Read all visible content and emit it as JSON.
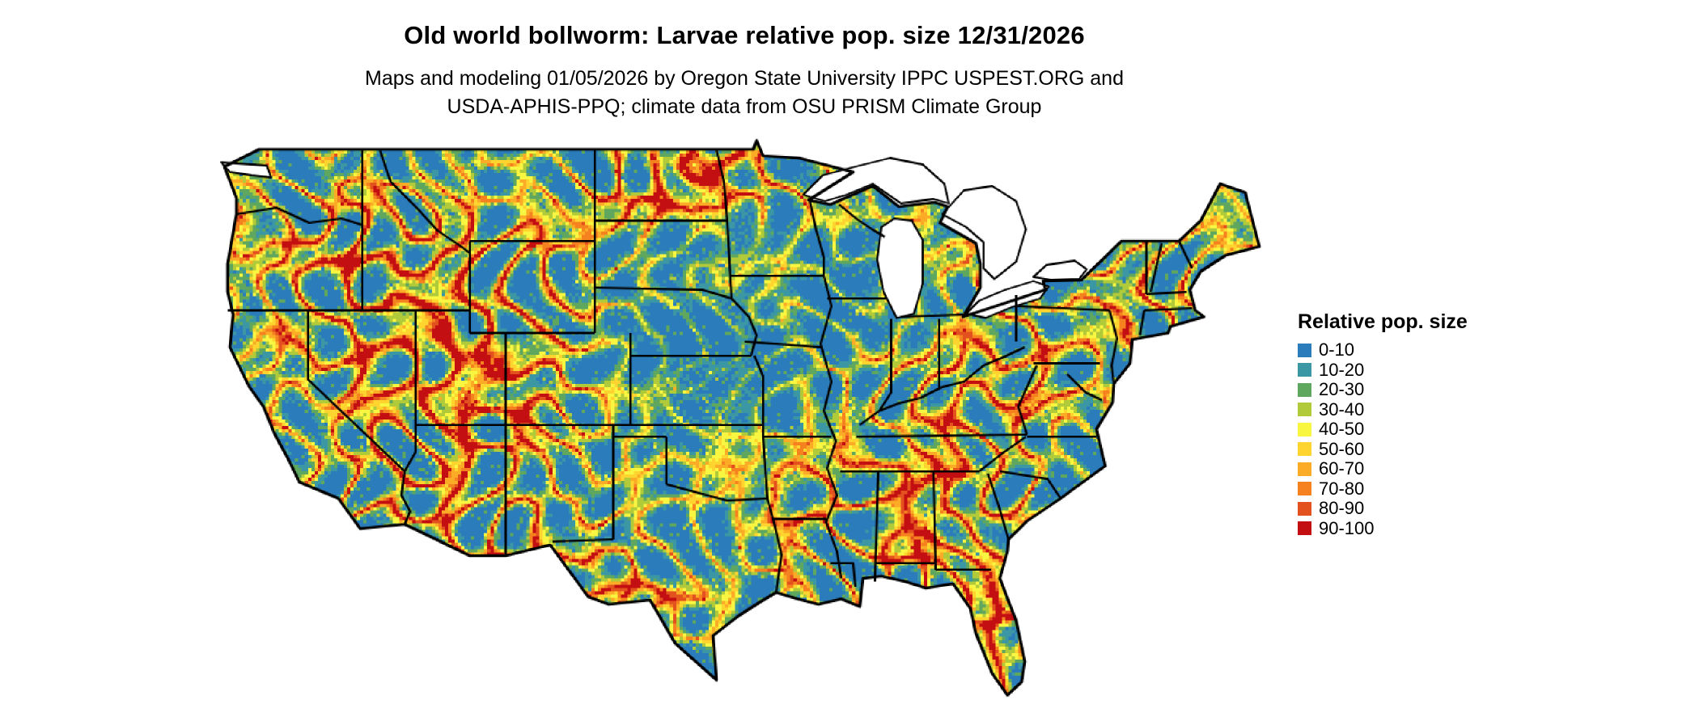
{
  "page": {
    "background": "#ffffff"
  },
  "header": {
    "title": "Old world bollworm: Larvae relative pop. size 12/31/2026",
    "subtitle_line1": "Maps and modeling 01/05/2026 by Oregon State University IPPC USPEST.ORG and",
    "subtitle_line2": "USDA-APHIS-PPQ; climate data from OSU PRISM Climate Group"
  },
  "map": {
    "name": "continental-us-relative-population-map",
    "border_color": "#000000",
    "water_color": "#ffffff",
    "base_color": "#2b7cba"
  },
  "legend": {
    "title": "Relative pop. size",
    "items": [
      {
        "label": "0-10",
        "color": "#2b7cba"
      },
      {
        "label": "10-20",
        "color": "#3b97a4"
      },
      {
        "label": "20-30",
        "color": "#5fa75f"
      },
      {
        "label": "30-40",
        "color": "#b1ca3a"
      },
      {
        "label": "40-50",
        "color": "#f9f642"
      },
      {
        "label": "50-60",
        "color": "#ffd42e"
      },
      {
        "label": "60-70",
        "color": "#fbab25"
      },
      {
        "label": "70-80",
        "color": "#f5821f"
      },
      {
        "label": "80-90",
        "color": "#e2511e"
      },
      {
        "label": "90-100",
        "color": "#c40f12"
      }
    ]
  }
}
